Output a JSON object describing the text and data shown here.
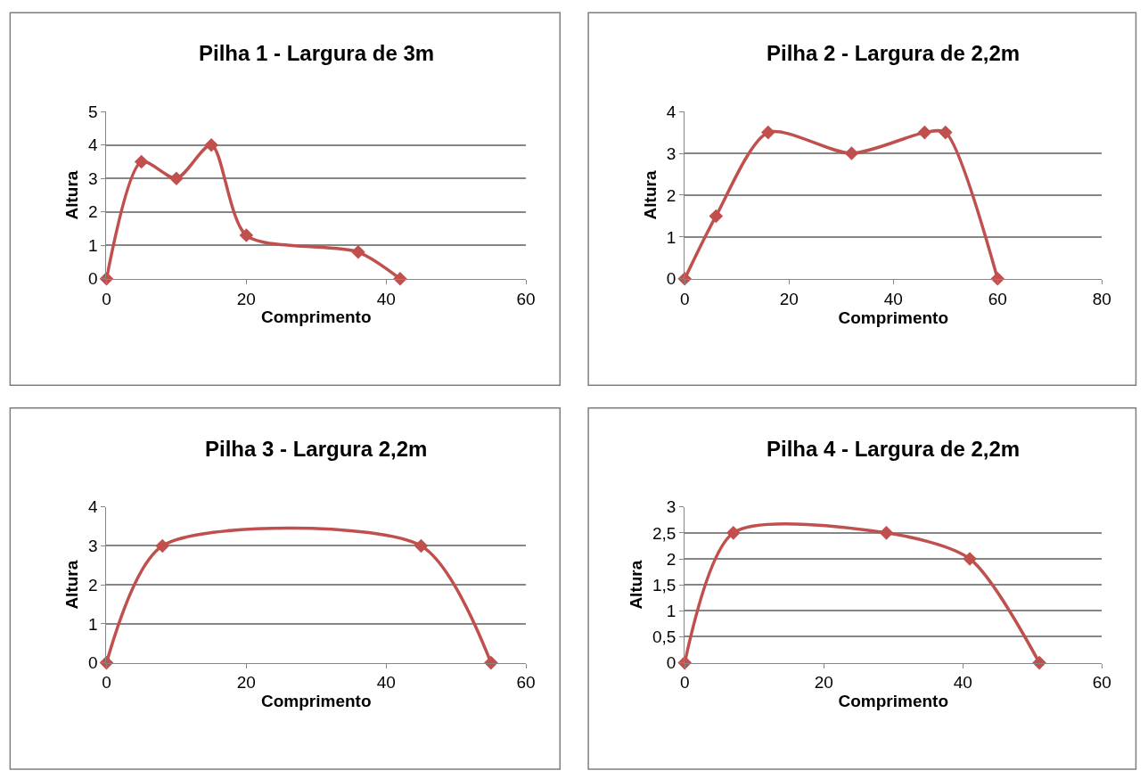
{
  "chart_data": [
    {
      "type": "line",
      "title": "Pilha 1 - Largura de 3m",
      "xlabel": "Comprimento",
      "ylabel": "Altura",
      "x": [
        0,
        5,
        10,
        15,
        20,
        36,
        42
      ],
      "series": [
        {
          "color": "#c0504d",
          "values": [
            0,
            3.5,
            3,
            4,
            1.3,
            0.8,
            0
          ]
        }
      ],
      "xlim": [
        0,
        60
      ],
      "xticks": [
        0,
        20,
        40,
        60
      ],
      "ylim": [
        0,
        5
      ],
      "yticks": [
        0,
        1,
        2,
        3,
        4,
        5
      ],
      "grid": "y",
      "marker": "diamond",
      "line_style": "solid"
    },
    {
      "type": "line",
      "title": "Pilha 2 - Largura de 2,2m",
      "xlabel": "Comprimento",
      "ylabel": "Altura",
      "x": [
        0,
        6,
        16,
        32,
        46,
        50,
        60
      ],
      "series": [
        {
          "color": "#c0504d",
          "values": [
            0,
            1.5,
            3.5,
            3,
            3.5,
            3.5,
            0
          ]
        }
      ],
      "xlim": [
        0,
        80
      ],
      "xticks": [
        0,
        20,
        40,
        60,
        80
      ],
      "ylim": [
        0,
        4
      ],
      "yticks": [
        0,
        1,
        2,
        3,
        4
      ],
      "grid": "y",
      "marker": "diamond",
      "line_style": "solid"
    },
    {
      "type": "line",
      "title": "Pilha 3 - Largura 2,2m",
      "xlabel": "Comprimento",
      "ylabel": "Altura",
      "x": [
        0,
        8,
        45,
        55
      ],
      "series": [
        {
          "color": "#c0504d",
          "values": [
            0,
            3,
            3,
            0
          ]
        }
      ],
      "xlim": [
        0,
        60
      ],
      "xticks": [
        0,
        20,
        40,
        60
      ],
      "ylim": [
        0,
        4
      ],
      "yticks": [
        0,
        1,
        2,
        3,
        4
      ],
      "grid": "y",
      "marker": "diamond",
      "line_style": "solid"
    },
    {
      "type": "line",
      "title": "Pilha 4 - Largura de 2,2m",
      "xlabel": "Comprimento",
      "ylabel": "Altura",
      "x": [
        0,
        7,
        29,
        41,
        51
      ],
      "series": [
        {
          "color": "#c0504d",
          "values": [
            0,
            2.5,
            2.5,
            2,
            0
          ]
        }
      ],
      "xlim": [
        0,
        60
      ],
      "xticks": [
        0,
        20,
        40,
        60
      ],
      "ylim": [
        0,
        3
      ],
      "yticks": [
        0,
        {
          "value": 0.5,
          "label": "0,5"
        },
        1,
        {
          "value": 1.5,
          "label": "1,5"
        },
        2,
        {
          "value": 2.5,
          "label": "2,5"
        },
        3
      ],
      "grid": "y",
      "marker": "diamond",
      "line_style": "solid"
    }
  ]
}
